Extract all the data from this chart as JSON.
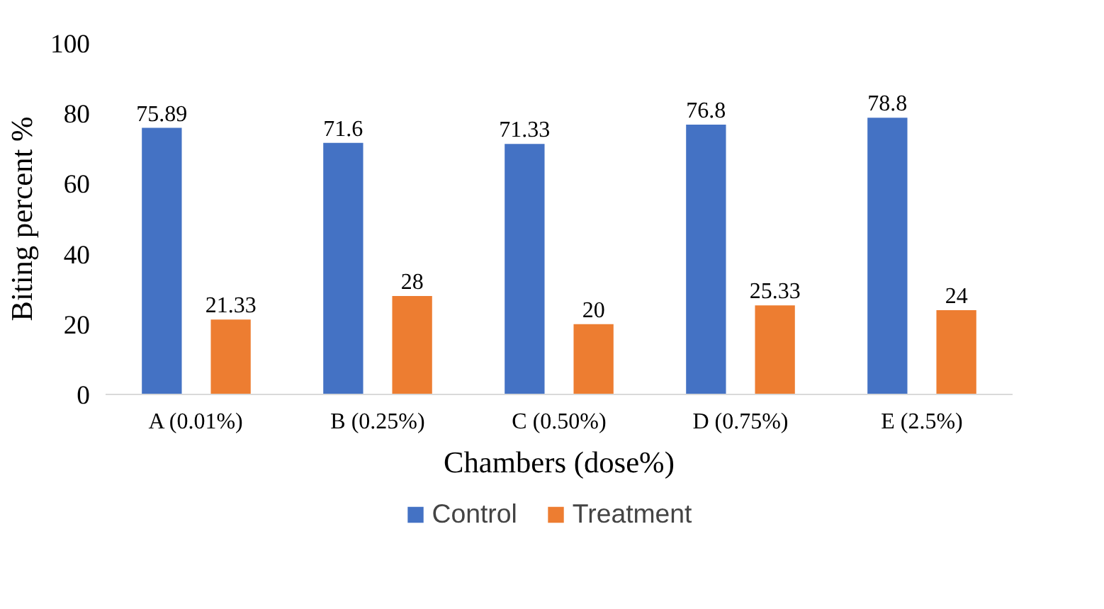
{
  "chart_data": {
    "type": "bar",
    "xlabel": "Chambers (dose%)",
    "ylabel": "Biting percent %",
    "categories": [
      "A (0.01%)",
      "B (0.25%)",
      "C (0.50%)",
      "D (0.75%)",
      "E (2.5%)"
    ],
    "series": [
      {
        "name": "Control",
        "color": "#4472c4",
        "values": [
          75.89,
          71.6,
          71.33,
          76.8,
          78.8
        ]
      },
      {
        "name": "Treatment",
        "color": "#ed7d31",
        "values": [
          21.33,
          28,
          20,
          25.33,
          24
        ]
      }
    ],
    "ylim": [
      0,
      100
    ],
    "yticks": [
      0,
      20,
      40,
      60,
      80,
      100
    ],
    "grid": false,
    "legend": "bottom",
    "data_labels": true
  }
}
